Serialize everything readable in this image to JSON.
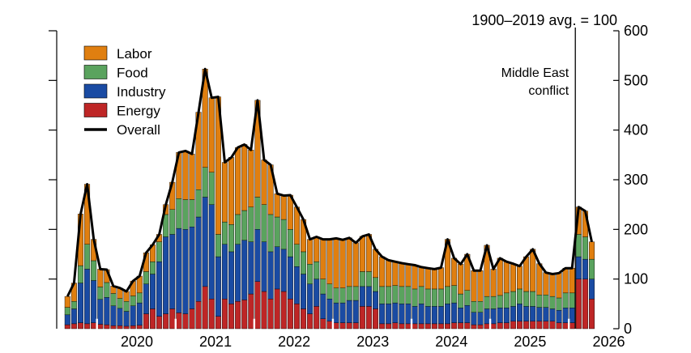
{
  "chart_data": {
    "type": "bar",
    "stacked": true,
    "title": "",
    "ylabel": "",
    "xlabel": "",
    "unit_note": "1900–2019 avg. = 100",
    "ylim": [
      0,
      600
    ],
    "yticks": [
      0,
      100,
      200,
      300,
      400,
      500,
      600
    ],
    "y_axis_side": "right",
    "grid": false,
    "legend_position": "top-left",
    "x_tick_labels": [
      "2020",
      "2021",
      "2022",
      "2023",
      "2024",
      "2025",
      "2026"
    ],
    "x_start_month": "2019-08",
    "annotation": {
      "label_lines": [
        "Middle East",
        "conflict"
      ],
      "month": "2026-02"
    },
    "legend": [
      {
        "key": "labor",
        "label": "Labor",
        "kind": "box"
      },
      {
        "key": "food",
        "label": "Food",
        "kind": "box"
      },
      {
        "key": "industry",
        "label": "Industry",
        "kind": "box"
      },
      {
        "key": "energy",
        "label": "Energy",
        "kind": "box"
      },
      {
        "key": "overall",
        "label": "Overall",
        "kind": "line"
      }
    ],
    "colors": {
      "labor": "#e07f10",
      "food": "#5aa35e",
      "industry": "#1a4ba3",
      "energy": "#be2626",
      "overall": "#000000"
    },
    "series": [
      {
        "key": "energy",
        "name": "Energy",
        "values": [
          8,
          10,
          12,
          10,
          12,
          9,
          8,
          6,
          6,
          5,
          6,
          7,
          30,
          40,
          25,
          30,
          40,
          32,
          30,
          40,
          55,
          85,
          60,
          25,
          60,
          50,
          55,
          58,
          70,
          95,
          75,
          60,
          80,
          75,
          60,
          50,
          40,
          30,
          45,
          20,
          15,
          12,
          12,
          12,
          12,
          45,
          45,
          40,
          10,
          10,
          12,
          10,
          10,
          10,
          10,
          10,
          10,
          10,
          10,
          12,
          12,
          12,
          8,
          8,
          10,
          10,
          12,
          12,
          15,
          15,
          15,
          15,
          15,
          15,
          15,
          12,
          12,
          12,
          100,
          100,
          60
        ]
      },
      {
        "key": "industry",
        "name": "Industry",
        "values": [
          20,
          30,
          80,
          110,
          85,
          50,
          55,
          40,
          35,
          30,
          40,
          45,
          60,
          70,
          110,
          155,
          150,
          170,
          170,
          165,
          170,
          180,
          190,
          120,
          110,
          105,
          115,
          120,
          105,
          105,
          100,
          95,
          85,
          85,
          85,
          75,
          70,
          60,
          55,
          50,
          45,
          40,
          40,
          45,
          45,
          40,
          40,
          35,
          40,
          40,
          40,
          40,
          40,
          35,
          40,
          35,
          35,
          35,
          40,
          40,
          30,
          35,
          25,
          25,
          30,
          30,
          30,
          30,
          30,
          35,
          30,
          30,
          28,
          28,
          25,
          25,
          30,
          30,
          45,
          40,
          40
        ]
      },
      {
        "key": "food",
        "name": "Food",
        "values": [
          15,
          15,
          35,
          50,
          40,
          25,
          30,
          25,
          20,
          20,
          20,
          20,
          25,
          25,
          40,
          45,
          50,
          60,
          60,
          55,
          55,
          60,
          65,
          45,
          45,
          55,
          60,
          60,
          70,
          65,
          75,
          75,
          60,
          60,
          55,
          45,
          45,
          40,
          35,
          30,
          30,
          30,
          30,
          28,
          28,
          30,
          30,
          28,
          35,
          35,
          35,
          35,
          35,
          35,
          35,
          35,
          35,
          35,
          35,
          35,
          28,
          30,
          22,
          22,
          25,
          25,
          25,
          30,
          30,
          30,
          30,
          30,
          25,
          25,
          25,
          25,
          30,
          30,
          45,
          45,
          40
        ]
      },
      {
        "key": "labor",
        "name": "Labor",
        "values": [
          22,
          37,
          104,
          121,
          43,
          36,
          26,
          15,
          21,
          20,
          30,
          34,
          38,
          34,
          15,
          20,
          55,
          93,
          98,
          92,
          156,
          198,
          150,
          277,
          120,
          135,
          135,
          133,
          115,
          195,
          90,
          100,
          47,
          48,
          69,
          75,
          65,
          50,
          50,
          80,
          90,
          100,
          97,
          98,
          88,
          71,
          75,
          57,
          60,
          53,
          48,
          47,
          45,
          48,
          39,
          42,
          40,
          43,
          95,
          55,
          60,
          73,
          62,
          62,
          103,
          55,
          75,
          63,
          56,
          46,
          70,
          85,
          63,
          45,
          45,
          50,
          50,
          50,
          55,
          52,
          35
        ]
      },
      {
        "key": "overall",
        "name": "Overall",
        "kind": "line",
        "values": [
          65,
          92,
          231,
          291,
          180,
          120,
          119,
          86,
          82,
          75,
          96,
          106,
          153,
          169,
          190,
          250,
          295,
          355,
          358,
          352,
          436,
          523,
          465,
          467,
          335,
          345,
          365,
          371,
          360,
          460,
          340,
          330,
          272,
          268,
          269,
          245,
          220,
          180,
          185,
          180,
          180,
          182,
          179,
          183,
          173,
          186,
          190,
          160,
          145,
          138,
          135,
          132,
          130,
          128,
          124,
          122,
          120,
          123,
          180,
          142,
          130,
          150,
          117,
          117,
          168,
          120,
          142,
          135,
          131,
          126,
          145,
          160,
          131,
          113,
          110,
          112,
          122,
          122,
          245,
          237,
          175
        ]
      }
    ]
  }
}
